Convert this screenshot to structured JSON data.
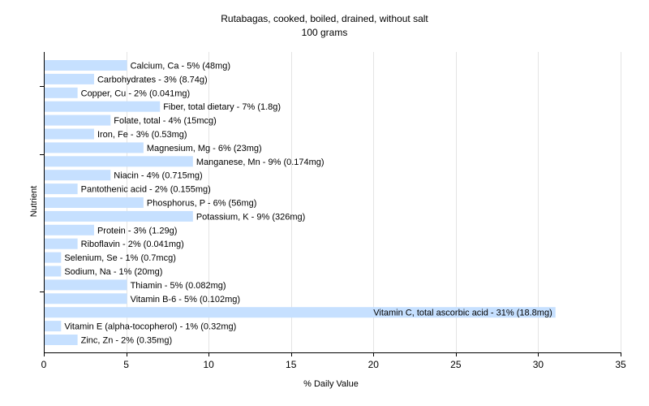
{
  "chart_data": {
    "type": "bar",
    "orientation": "horizontal",
    "title": "Rutabagas, cooked, boiled, drained, without salt",
    "subtitle": "100 grams",
    "xlabel": "% Daily Value",
    "ylabel": "Nutrient",
    "xlim": [
      0,
      35
    ],
    "xticks": [
      0,
      5,
      10,
      15,
      20,
      25,
      30,
      35
    ],
    "grid": "vertical",
    "legend": "none",
    "bar_color": "#c6e0ff",
    "categories": [
      "Calcium, Ca",
      "Carbohydrates",
      "Copper, Cu",
      "Fiber, total dietary",
      "Folate, total",
      "Iron, Fe",
      "Magnesium, Mg",
      "Manganese, Mn",
      "Niacin",
      "Pantothenic acid",
      "Phosphorus, P",
      "Potassium, K",
      "Protein",
      "Riboflavin",
      "Selenium, Se",
      "Sodium, Na",
      "Thiamin",
      "Vitamin B-6",
      "Vitamin C, total ascorbic acid",
      "Vitamin E (alpha-tocopherol)",
      "Zinc, Zn"
    ],
    "values": [
      5,
      3,
      2,
      7,
      4,
      3,
      6,
      9,
      4,
      2,
      6,
      9,
      3,
      2,
      1,
      1,
      5,
      5,
      31,
      1,
      2
    ],
    "labels": [
      "Calcium, Ca - 5% (48mg)",
      "Carbohydrates - 3% (8.74g)",
      "Copper, Cu - 2% (0.041mg)",
      "Fiber, total dietary - 7% (1.8g)",
      "Folate, total - 4% (15mcg)",
      "Iron, Fe - 3% (0.53mg)",
      "Magnesium, Mg - 6% (23mg)",
      "Manganese, Mn - 9% (0.174mg)",
      "Niacin - 4% (0.715mg)",
      "Pantothenic acid - 2% (0.155mg)",
      "Phosphorus, P - 6% (56mg)",
      "Potassium, K - 9% (326mg)",
      "Protein - 3% (1.29g)",
      "Riboflavin - 2% (0.041mg)",
      "Selenium, Se - 1% (0.7mcg)",
      "Sodium, Na - 1% (20mg)",
      "Thiamin - 5% (0.082mg)",
      "Vitamin B-6 - 5% (0.102mg)",
      "Vitamin C, total ascorbic acid - 31% (18.8mg)",
      "Vitamin E (alpha-tocopherol) - 1% (0.32mg)",
      "Zinc, Zn - 2% (0.35mg)"
    ]
  }
}
